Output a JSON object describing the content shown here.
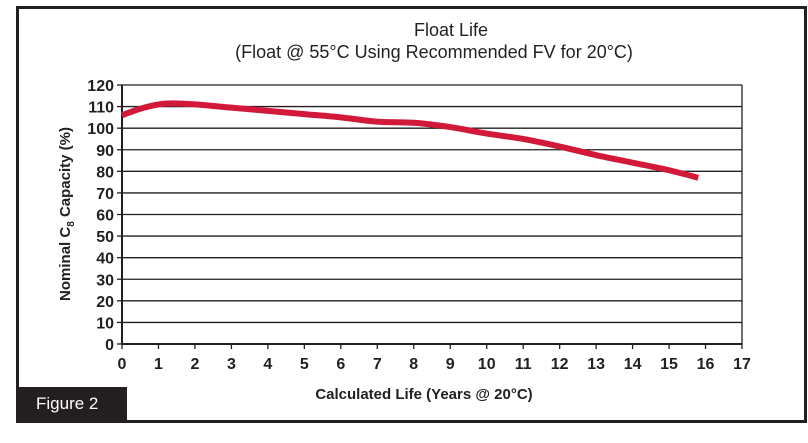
{
  "figure_label": "Figure 2",
  "chart_data": {
    "type": "line",
    "title": "Float Life",
    "subtitle": "(Float @ 55°C Using Recommended FV for 20°C)",
    "xlabel": "Calculated Life (Years @ 20°C)",
    "ylabel": "Nominal C8 Capacity (%)",
    "xlim": [
      0,
      17
    ],
    "ylim": [
      0,
      120
    ],
    "xticks": [
      0,
      1,
      2,
      3,
      4,
      5,
      6,
      7,
      8,
      9,
      10,
      11,
      12,
      13,
      14,
      15,
      16,
      17
    ],
    "yticks": [
      0,
      10,
      20,
      30,
      40,
      50,
      60,
      70,
      80,
      90,
      100,
      110,
      120
    ],
    "grid": "horizontal",
    "line_color": "#d2193a",
    "series": [
      {
        "x": [
          0,
          0.5,
          1,
          1.4,
          2,
          3,
          4,
          5,
          6,
          7,
          8,
          9,
          10,
          11,
          12,
          13,
          14,
          15,
          15.8
        ],
        "y": [
          106,
          109,
          111,
          111.5,
          111,
          109.5,
          108,
          106.5,
          105,
          103,
          102.5,
          100.5,
          97.5,
          95,
          91.5,
          87.5,
          84,
          80.5,
          77
        ]
      }
    ]
  }
}
